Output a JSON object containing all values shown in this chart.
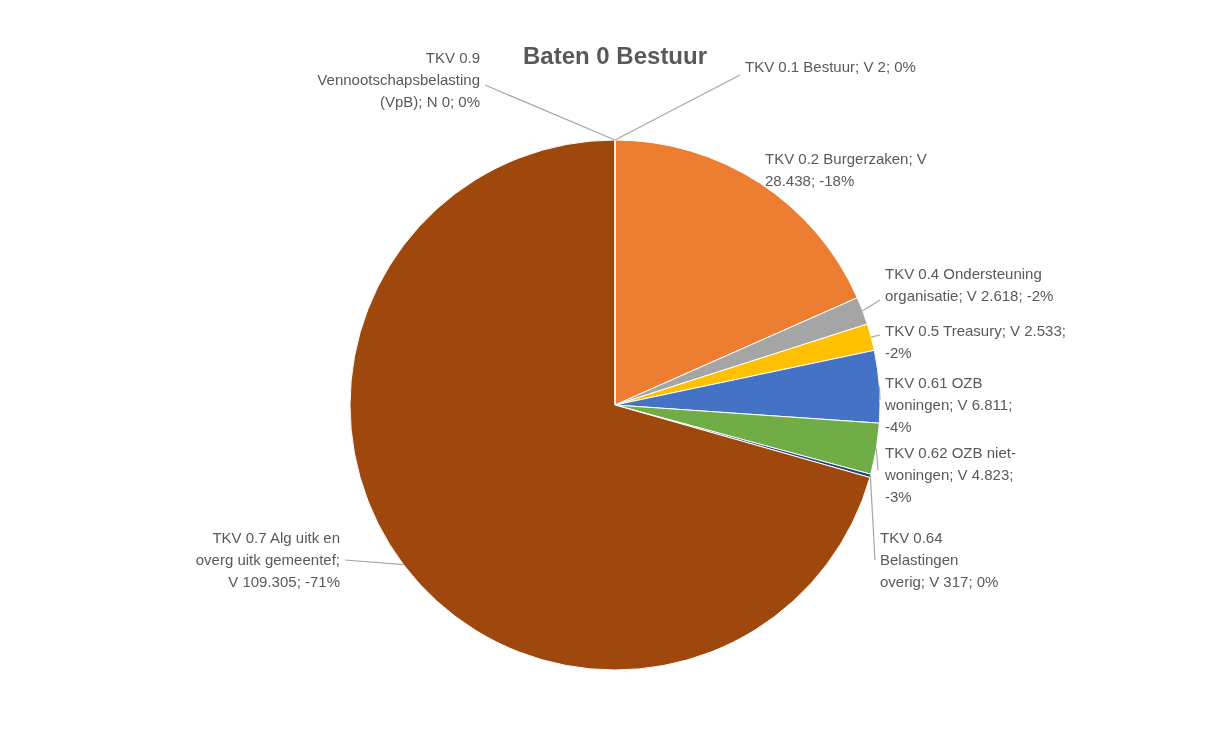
{
  "chart_data": {
    "type": "pie",
    "title": "Baten 0 Bestuur",
    "categories": [
      "TKV 0.1 Bestuur; V 2; 0%",
      "TKV 0.2 Burgerzaken; V 28.438; -18%",
      "TKV 0.4 Ondersteuning organisatie; V 2.618; -2%",
      "TKV 0.5 Treasury; V 2.533; -2%",
      "TKV 0.61 OZB woningen; V 6.811; -4%",
      "TKV 0.62 OZB niet-woningen; V 4.823; -3%",
      "TKV 0.64 Belastingen overig; V 317; 0%",
      "TKV 0.7 Alg uitk en overg uitk gemeentef; V 109.305; -71%",
      "TKV 0.9 Vennootschapsbelasting (VpB); N 0; 0%"
    ],
    "values": [
      2,
      28438,
      2618,
      2533,
      6811,
      4823,
      317,
      109305,
      0
    ],
    "colors": [
      "#4472c4",
      "#ed7d31",
      "#a5a5a5",
      "#ffc000",
      "#4472c4",
      "#70ad47",
      "#264478",
      "#9e480e",
      "#636363"
    ]
  }
}
